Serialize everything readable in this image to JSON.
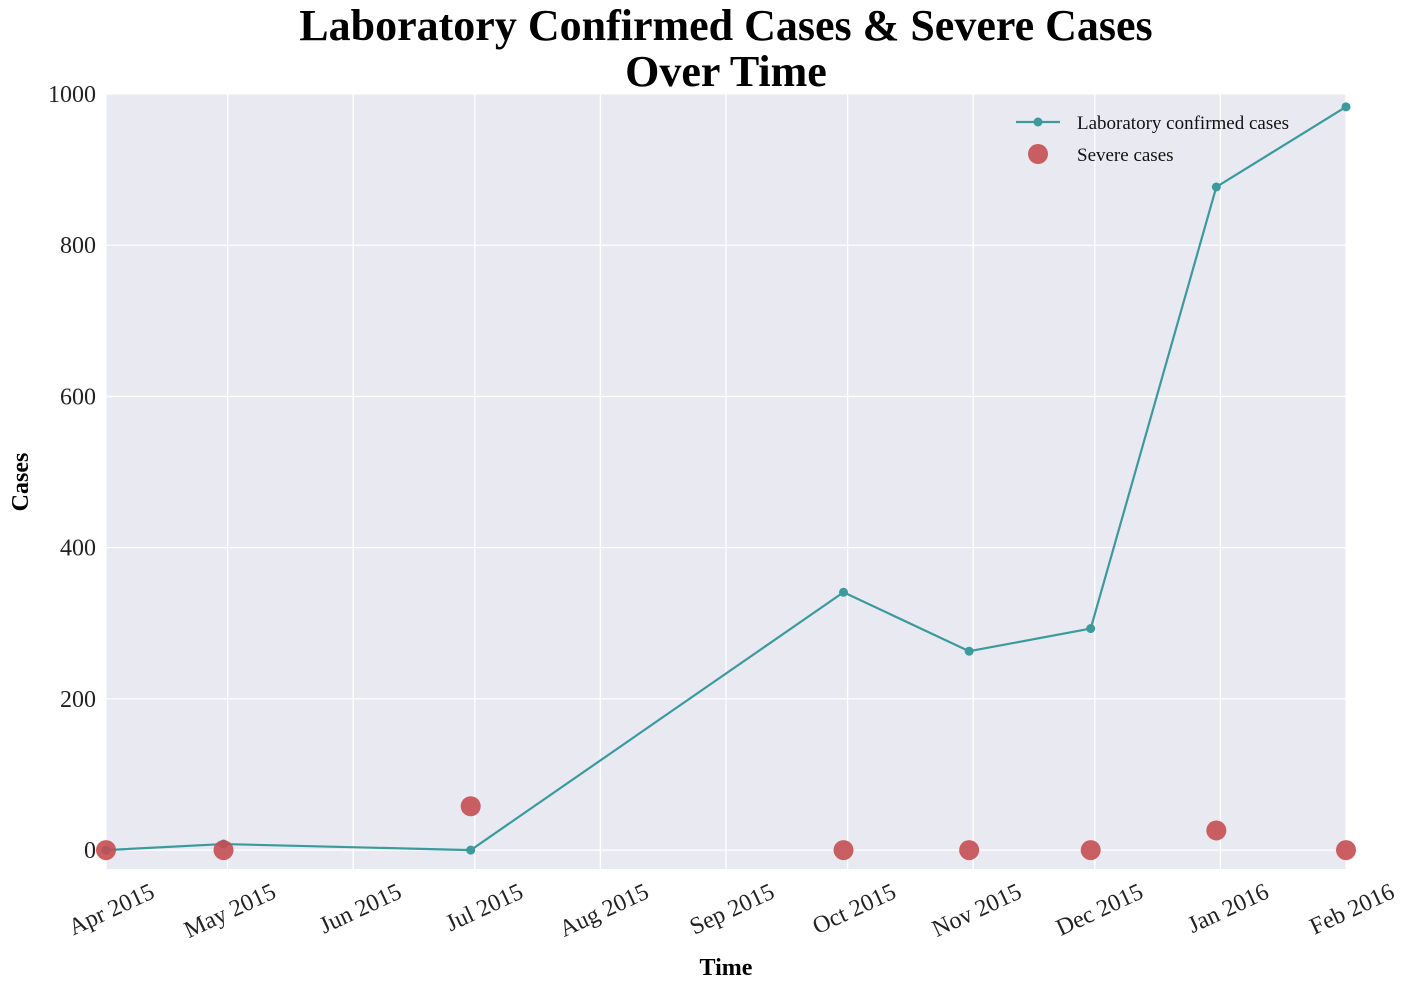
{
  "chart_data": {
    "type": "line",
    "title": "Laboratory Confirmed Cases & Severe Cases",
    "subtitle": "Over Time",
    "xlabel": "Time",
    "ylabel": "Cases",
    "x_ticks": [
      "Apr 2015",
      "May 2015",
      "Jun 2015",
      "Jul 2015",
      "Aug 2015",
      "Sep 2015",
      "Oct 2015",
      "Nov 2015",
      "Dec 2015",
      "Jan 2016",
      "Feb 2016"
    ],
    "x_range": [
      "2015-04-01",
      "2016-02-01"
    ],
    "y_ticks": [
      "0",
      "200",
      "400",
      "600",
      "800",
      "1000"
    ],
    "ylim": [
      -25,
      1000
    ],
    "grid": true,
    "legend_position": "top-right",
    "series": [
      {
        "name": "Laboratory confirmed cases",
        "kind": "line-with-markers",
        "color": "#3a9a9c",
        "points": [
          {
            "x": "2015-04-01",
            "y": 0
          },
          {
            "x": "2015-04-30",
            "y": 8
          },
          {
            "x": "2015-06-30",
            "y": 0
          },
          {
            "x": "2015-09-30",
            "y": 341
          },
          {
            "x": "2015-10-31",
            "y": 263
          },
          {
            "x": "2015-11-30",
            "y": 293
          },
          {
            "x": "2015-12-31",
            "y": 877
          },
          {
            "x": "2016-02-01",
            "y": 983
          }
        ]
      },
      {
        "name": "Severe cases",
        "kind": "scatter",
        "color": "#c44e52",
        "points": [
          {
            "x": "2015-04-01",
            "y": 0
          },
          {
            "x": "2015-04-30",
            "y": 0
          },
          {
            "x": "2015-06-30",
            "y": 58
          },
          {
            "x": "2015-09-30",
            "y": 0
          },
          {
            "x": "2015-10-31",
            "y": 0
          },
          {
            "x": "2015-11-30",
            "y": 0
          },
          {
            "x": "2015-12-31",
            "y": 26
          },
          {
            "x": "2016-02-01",
            "y": 0
          }
        ]
      }
    ]
  },
  "style": {
    "plot_background": "#e9e9f1",
    "grid_color": "#ffffff"
  }
}
